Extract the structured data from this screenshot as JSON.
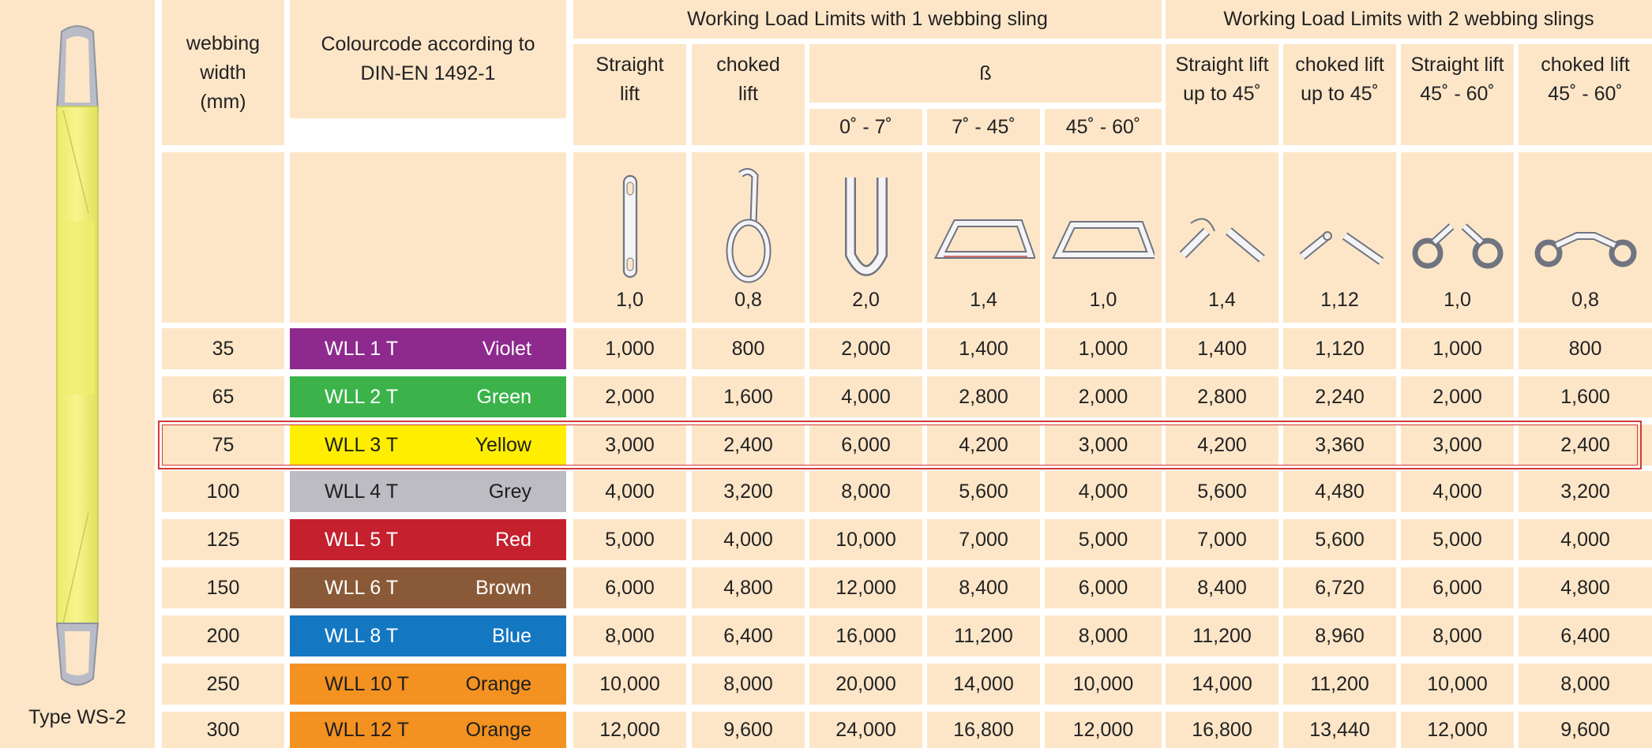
{
  "sling_panel": {
    "type_label": "Type WS-2"
  },
  "headers": {
    "webbing_width": "webbing\nwidth\n(mm)",
    "colourcode": "Colourcode according to\nDIN-EN 1492-1",
    "group_1": "Working Load Limits with 1 webbing sling",
    "group_2": "Working Load Limits with 2 webbing slings",
    "straight_lift": "Straight\nlift",
    "choked_lift": "choked\nlift",
    "beta": "ß",
    "angle_1": "0˚ - 7˚",
    "angle_2": "7˚ - 45˚",
    "angle_3": "45˚ - 60˚",
    "two_straight_45": "Straight lift\nup to 45˚",
    "two_choked_45": "choked lift\nup to 45˚",
    "two_straight_60": "Straight lift\n45˚ - 60˚",
    "two_choked_60": "choked lift\n45˚ - 60˚"
  },
  "factors": [
    "1,0",
    "0,8",
    "2,0",
    "1,4",
    "1,0",
    "1,4",
    "1,12",
    "1,0",
    "0,8"
  ],
  "rows": [
    {
      "width": "35",
      "wll": "WLL 1 T",
      "colour": "Violet",
      "swatch": "#8e2a8e",
      "text_dark": false,
      "values": [
        "1,000",
        "800",
        "2,000",
        "1,400",
        "1,000",
        "1,400",
        "1,120",
        "1,000",
        "800"
      ]
    },
    {
      "width": "65",
      "wll": "WLL 2 T",
      "colour": "Green",
      "swatch": "#3bb34a",
      "text_dark": false,
      "values": [
        "2,000",
        "1,600",
        "4,000",
        "2,800",
        "2,000",
        "2,800",
        "2,240",
        "2,000",
        "1,600"
      ]
    },
    {
      "width": "75",
      "wll": "WLL 3 T",
      "colour": "Yellow",
      "swatch": "#ffee00",
      "text_dark": true,
      "values": [
        "3,000",
        "2,400",
        "6,000",
        "4,200",
        "3,000",
        "4,200",
        "3,360",
        "3,000",
        "2,400"
      ]
    },
    {
      "width": "100",
      "wll": "WLL 4 T",
      "colour": "Grey",
      "swatch": "#bdbcc2",
      "text_dark": true,
      "values": [
        "4,000",
        "3,200",
        "8,000",
        "5,600",
        "4,000",
        "5,600",
        "4,480",
        "4,000",
        "3,200"
      ]
    },
    {
      "width": "125",
      "wll": "WLL 5 T",
      "colour": "Red",
      "swatch": "#c4202e",
      "text_dark": false,
      "values": [
        "5,000",
        "4,000",
        "10,000",
        "7,000",
        "5,000",
        "7,000",
        "5,600",
        "5,000",
        "4,000"
      ]
    },
    {
      "width": "150",
      "wll": "WLL 6 T",
      "colour": "Brown",
      "swatch": "#8a5a38",
      "text_dark": false,
      "values": [
        "6,000",
        "4,800",
        "12,000",
        "8,400",
        "6,000",
        "8,400",
        "6,720",
        "6,000",
        "4,800"
      ]
    },
    {
      "width": "200",
      "wll": "WLL 8 T",
      "colour": "Blue",
      "swatch": "#1477c2",
      "text_dark": false,
      "values": [
        "8,000",
        "6,400",
        "16,000",
        "11,200",
        "8,000",
        "11,200",
        "8,960",
        "8,000",
        "6,400"
      ]
    },
    {
      "width": "250",
      "wll": "WLL 10 T",
      "colour": "Orange",
      "swatch": "#f39220",
      "text_dark": true,
      "values": [
        "10,000",
        "8,000",
        "20,000",
        "14,000",
        "10,000",
        "14,000",
        "11,200",
        "10,000",
        "8,000"
      ]
    },
    {
      "width": "300",
      "wll": "WLL 12 T",
      "colour": "Orange",
      "swatch": "#f39220",
      "text_dark": true,
      "values": [
        "12,000",
        "9,600",
        "24,000",
        "16,800",
        "12,000",
        "16,800",
        "13,440",
        "12,000",
        "9,600"
      ]
    }
  ],
  "highlighted_row": 2
}
